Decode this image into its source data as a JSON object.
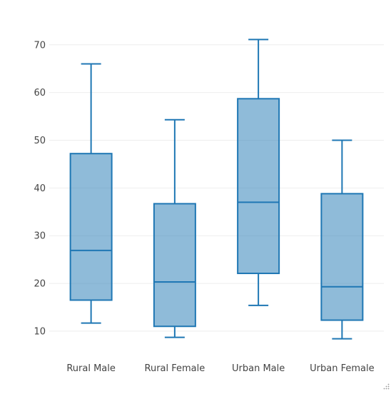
{
  "chart_data": {
    "type": "box",
    "categories": [
      "Rural Male",
      "Rural Female",
      "Urban Male",
      "Urban Female"
    ],
    "series": [
      {
        "boxes": [
          {
            "category": "Rural Male",
            "min": 11.7,
            "q1": 16.5,
            "median": 26.9,
            "q3": 47.2,
            "max": 66.0
          },
          {
            "category": "Rural Female",
            "min": 8.7,
            "q1": 11.0,
            "median": 20.3,
            "q3": 36.7,
            "max": 54.3
          },
          {
            "category": "Urban Male",
            "min": 15.4,
            "q1": 22.1,
            "median": 37.0,
            "q3": 58.7,
            "max": 71.1
          },
          {
            "category": "Urban Female",
            "min": 8.4,
            "q1": 12.3,
            "median": 19.3,
            "q3": 38.8,
            "max": 50.0
          }
        ]
      }
    ],
    "title": "",
    "xlabel": "",
    "ylabel": "",
    "yticks": [
      10,
      20,
      30,
      40,
      50,
      60,
      70
    ],
    "ylim": [
      6.4,
      74.3
    ],
    "grid": true,
    "legend": "none",
    "colors": {
      "box_fill": "#1f77b4",
      "box_line": "#1f77b4",
      "grid": "#eeeeee",
      "text": "#444444"
    }
  }
}
